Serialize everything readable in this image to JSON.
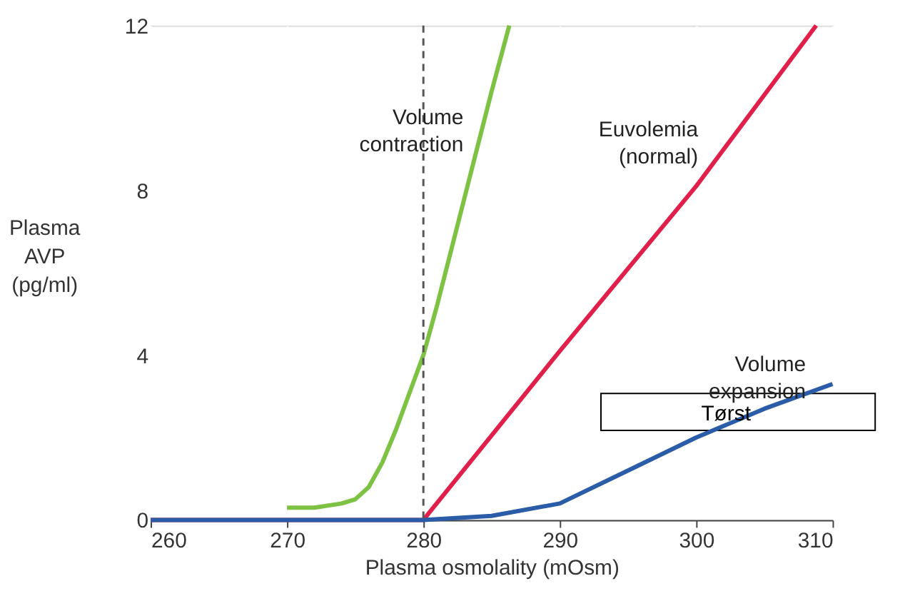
{
  "chart_data": {
    "type": "line",
    "xlabel": "Plasma osmolality (mOsm)",
    "ylabel": "Plasma\nAVP\n(pg/ml)",
    "xlim": [
      260,
      310
    ],
    "ylim": [
      0,
      12
    ],
    "xticks": [
      260,
      270,
      280,
      290,
      300,
      310
    ],
    "yticks": [
      0,
      4,
      8,
      12
    ],
    "grid": "x",
    "series": [
      {
        "x": [
          270,
          272,
          274,
          275,
          276,
          277,
          278,
          279,
          280,
          281,
          282,
          283,
          284,
          285,
          286.3
        ],
        "values": [
          0.3,
          0.3,
          0.4,
          0.5,
          0.8,
          1.4,
          2.2,
          3.1,
          4.0,
          5.2,
          6.5,
          7.8,
          9.1,
          10.4,
          12
        ],
        "color": "#7dc242"
      },
      {
        "x": [
          260,
          270,
          280,
          290,
          300,
          308.8
        ],
        "values": [
          0,
          0,
          0,
          4.1,
          8.1,
          12
        ],
        "color": "#e0204a"
      },
      {
        "x": [
          260,
          270,
          280,
          285,
          290,
          295,
          300,
          305,
          310
        ],
        "values": [
          0,
          0,
          0,
          0.1,
          0.4,
          1.2,
          2.0,
          2.7,
          3.3
        ],
        "color": "#2a5ca8"
      }
    ],
    "ref_lines": [
      {
        "axis": "x",
        "value": 280,
        "color": "#555555",
        "line_style": "dashed"
      }
    ],
    "annotations": [
      {
        "text": "Volume\ncontraction",
        "x": 284.4,
        "y": 9.3
      },
      {
        "text": "Euvolemia\n(normal)",
        "x": 301.6,
        "y": 9.0
      },
      {
        "text": "Volume\nexpansion",
        "x": 309.5,
        "y": 3.3
      },
      "Tørst"
    ]
  }
}
